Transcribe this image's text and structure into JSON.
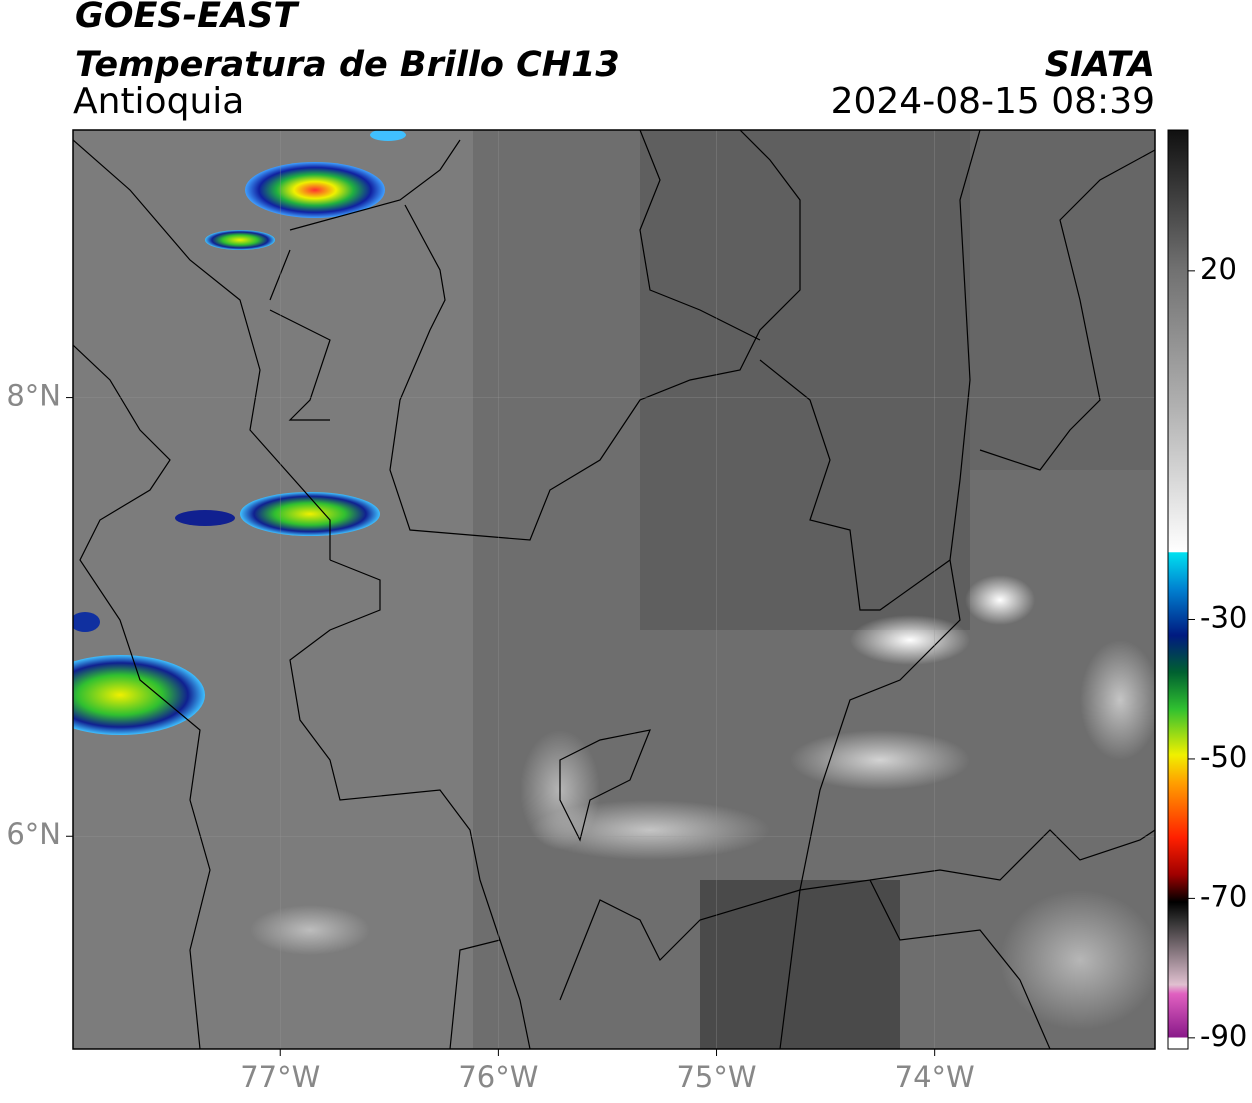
{
  "header": {
    "title": "GOES-EAST",
    "subtitle": "Temperatura de Brillo CH13",
    "region": "Antioquia",
    "source": "SIATA",
    "datetime": "2024-08-15 08:39"
  },
  "map": {
    "xlim": [
      -77.95,
      -72.99
    ],
    "ylim": [
      5.03,
      9.22
    ],
    "xticks": [
      {
        "value": -77,
        "label": "77°W"
      },
      {
        "value": -76,
        "label": "76°W"
      },
      {
        "value": -75,
        "label": "75°W"
      },
      {
        "value": -74,
        "label": "74°W"
      }
    ],
    "yticks": [
      {
        "value": 8,
        "label": "8°N"
      },
      {
        "value": 6,
        "label": "6°N"
      }
    ],
    "grid": true
  },
  "colorbar": {
    "lim": [
      -91.6,
      40.2
    ],
    "ticks": [
      20,
      -30,
      -50,
      -70,
      -90
    ]
  }
}
